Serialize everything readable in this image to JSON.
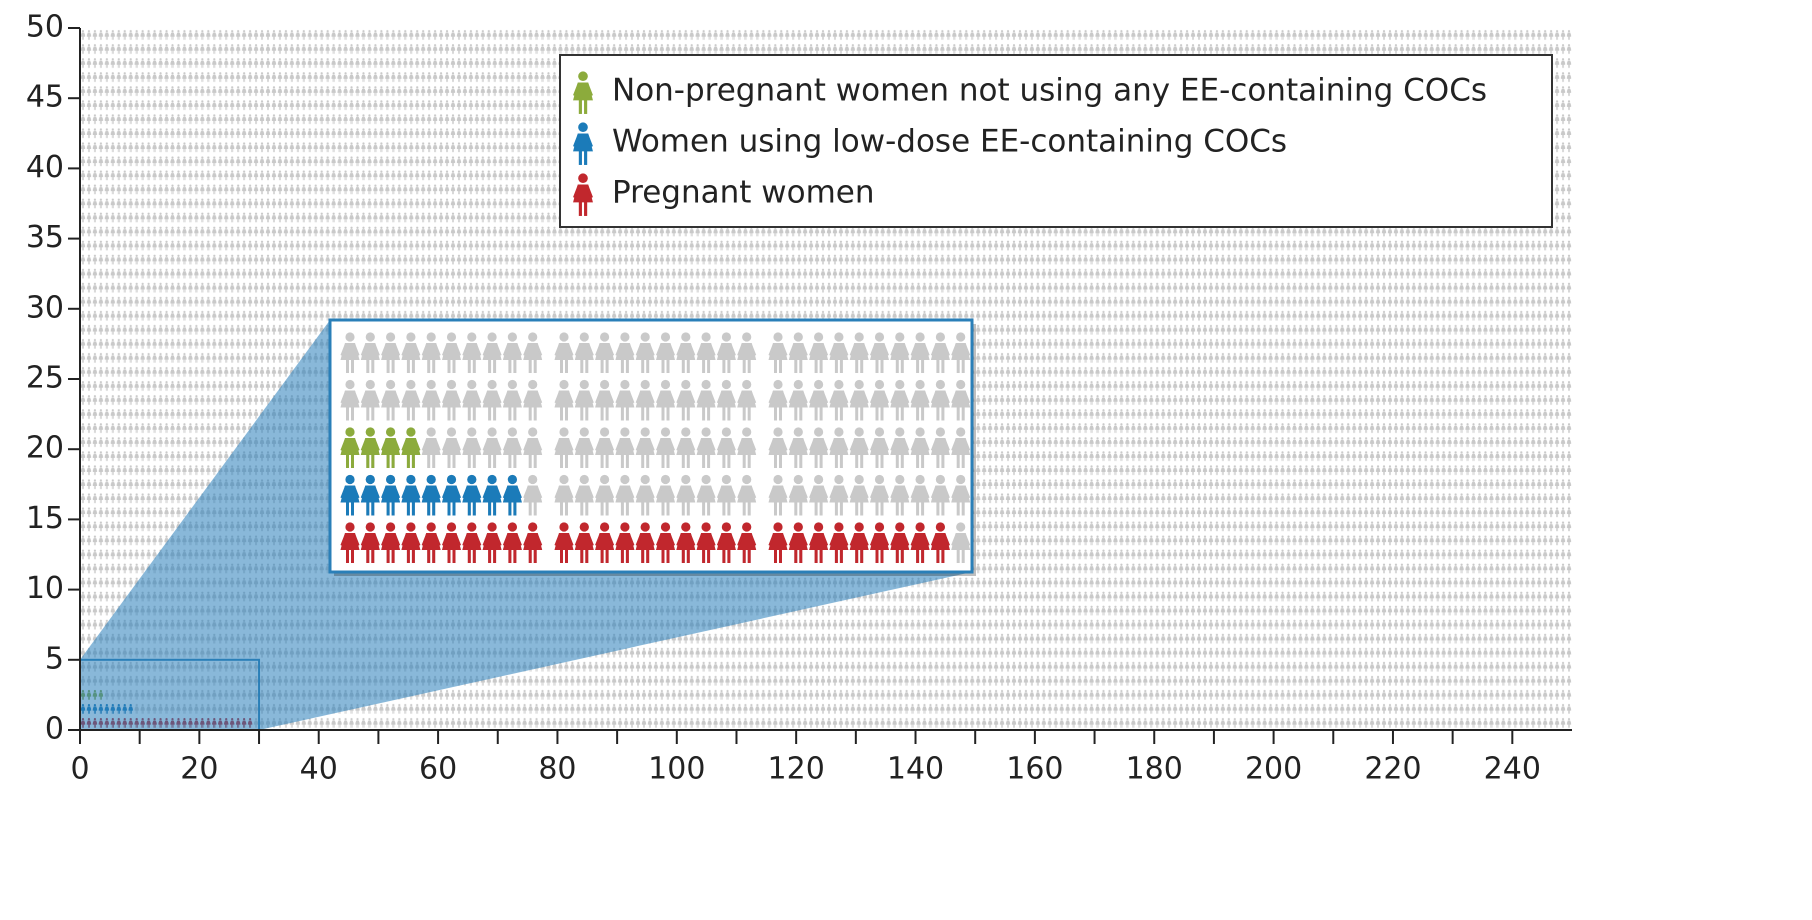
{
  "chart_data": {
    "type": "pictogram",
    "series": [
      {
        "name": "Non-pregnant women not using any EE-containing COCs",
        "color": "#8cab3c",
        "values": [
          4
        ]
      },
      {
        "name": "Women using low-dose EE-containing COCs",
        "color": "#1b7bb9",
        "values": [
          9
        ]
      },
      {
        "name": "Pregnant women",
        "color": "#c1272d",
        "values": [
          29
        ]
      }
    ],
    "background_color": "#c9c9c9",
    "xlim": [
      0,
      250
    ],
    "xticks": [
      0,
      20,
      40,
      60,
      80,
      100,
      120,
      140,
      160,
      180,
      200,
      220,
      240
    ],
    "ylim": [
      0,
      50
    ],
    "yticks": [
      0,
      5,
      10,
      15,
      20,
      25,
      30,
      35,
      40,
      45,
      50
    ],
    "legend": "upper right"
  }
}
